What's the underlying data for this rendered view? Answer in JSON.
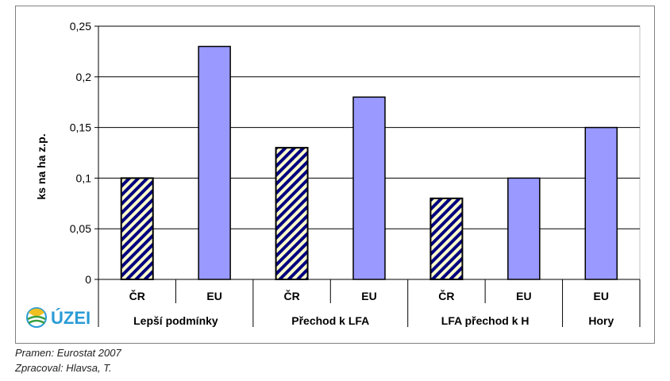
{
  "chart_data": {
    "type": "bar",
    "ylabel": "ks na ha z.p.",
    "ylim": [
      0,
      0.25
    ],
    "yticks": [
      "0",
      "0,05",
      "0,1",
      "0,15",
      "0,2",
      "0,25"
    ],
    "grid": "horizontal",
    "groups": [
      {
        "name": "Lepší podmínky",
        "bars": [
          {
            "label": "ČR",
            "value": 0.1,
            "style": "cr"
          },
          {
            "label": "EU",
            "value": 0.23,
            "style": "eu"
          }
        ]
      },
      {
        "name": "Přechod k LFA",
        "bars": [
          {
            "label": "ČR",
            "value": 0.13,
            "style": "cr"
          },
          {
            "label": "EU",
            "value": 0.18,
            "style": "eu"
          }
        ]
      },
      {
        "name": "LFA přechod k H",
        "bars": [
          {
            "label": "ČR",
            "value": 0.08,
            "style": "cr"
          },
          {
            "label": "EU",
            "value": 0.1,
            "style": "eu"
          }
        ]
      },
      {
        "name": "Hory",
        "bars": [
          {
            "label": "EU",
            "value": 0.15,
            "style": "eu"
          }
        ]
      }
    ],
    "colors": {
      "eu_fill": "#9999ff",
      "cr_stripe_dark": "#000080",
      "cr_stripe_light": "#ffffcc"
    }
  },
  "logo": {
    "text": "ÚZEI"
  },
  "footer": {
    "source": "Pramen: Eurostat 2007",
    "author": "Zpracoval: Hlavsa, T."
  }
}
